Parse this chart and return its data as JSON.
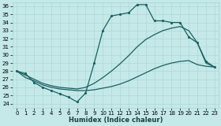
{
  "xlabel": "Humidex (Indice chaleur)",
  "bg_color": "#c5e8e8",
  "line_color": "#1a6060",
  "grid_color": "#aad4d4",
  "xlim": [
    -0.5,
    23.5
  ],
  "ylim": [
    23.5,
    36.5
  ],
  "yticks": [
    24,
    25,
    26,
    27,
    28,
    29,
    30,
    31,
    32,
    33,
    34,
    35,
    36
  ],
  "xticks": [
    0,
    1,
    2,
    3,
    4,
    5,
    6,
    7,
    8,
    9,
    10,
    11,
    12,
    13,
    14,
    15,
    16,
    17,
    18,
    19,
    20,
    21,
    22,
    23
  ],
  "line1_x": [
    0,
    1,
    2,
    3,
    4,
    5,
    6,
    7,
    8,
    9,
    10,
    11,
    12,
    13,
    14,
    15,
    16,
    17,
    18,
    19,
    20,
    21,
    22,
    23
  ],
  "line1_y": [
    28.0,
    27.7,
    26.6,
    26.0,
    25.6,
    25.2,
    24.8,
    24.2,
    25.3,
    29.0,
    33.0,
    34.8,
    35.0,
    35.2,
    36.2,
    36.2,
    34.2,
    34.2,
    34.0,
    34.0,
    32.2,
    31.5,
    29.2,
    28.5
  ],
  "line2_x": [
    0,
    1,
    2,
    3,
    4,
    5,
    6,
    7,
    8,
    9,
    10,
    11,
    12,
    13,
    14,
    15,
    16,
    17,
    18,
    19,
    20,
    21,
    22,
    23
  ],
  "line2_y": [
    28.0,
    27.2,
    26.8,
    26.3,
    26.0,
    25.8,
    25.7,
    25.6,
    25.6,
    25.7,
    25.9,
    26.1,
    26.4,
    26.8,
    27.3,
    27.8,
    28.3,
    28.7,
    29.0,
    29.2,
    29.3,
    28.8,
    28.6,
    28.5
  ],
  "line3_x": [
    0,
    1,
    2,
    3,
    4,
    5,
    6,
    7,
    8,
    9,
    10,
    11,
    12,
    13,
    14,
    15,
    16,
    17,
    18,
    19,
    20,
    21,
    22,
    23
  ],
  "line3_y": [
    28.0,
    27.5,
    27.0,
    26.5,
    26.2,
    26.0,
    25.9,
    25.8,
    26.0,
    26.5,
    27.2,
    28.0,
    28.9,
    29.9,
    31.0,
    31.9,
    32.5,
    33.0,
    33.3,
    33.5,
    33.0,
    31.5,
    29.0,
    28.5
  ],
  "marker": ".",
  "lw": 0.9,
  "ms": 2.5,
  "xlabel_fontsize": 6.0,
  "tick_fontsize": 5.0
}
